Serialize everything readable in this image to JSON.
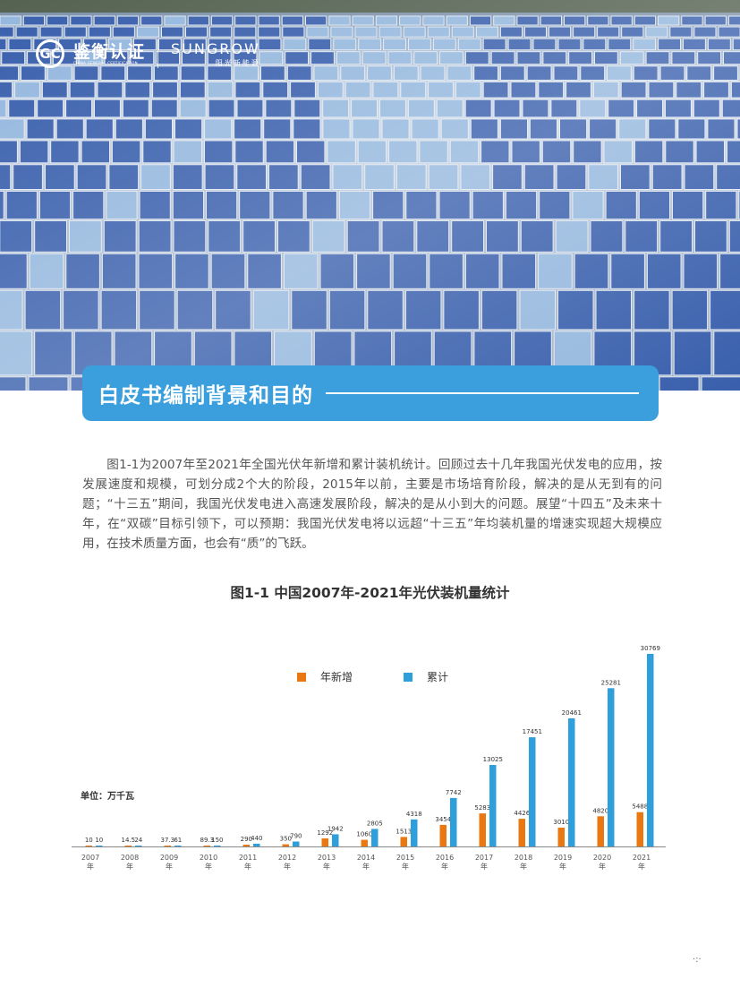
{
  "header": {
    "logo1_mark": "GC",
    "logo1_cn": "鉴衡认证",
    "logo1_en": "CHINA GENERAL CERTIFICATION",
    "logo2_en": "SUNGROW",
    "logo2_cn": "阳光新能源"
  },
  "section": {
    "title": "白皮书编制背景和目的"
  },
  "body": {
    "paragraph": "图1-1为2007年至2021年全国光伏年新增和累计装机统计。回顾过去十几年我国光伏发电的应用，按发展速度和规模，可划分成2个大的阶段，2015年以前，主要是市场培育阶段，解决的是从无到有的问题；“十三五”期间，我国光伏发电进入高速发展阶段，解决的是从小到大的问题。展望“十四五”及未来十年，在“双碳”目标引领下，可以预期：我国光伏发电将以远超“十三五”年均装机量的增速实现超大规模应用，在技术质量方面，也会有“质”的飞跃。"
  },
  "colors": {
    "accent": "#3a9fdc",
    "new": "#e8780f",
    "cumulative": "#2e9fdb"
  },
  "chart_data": {
    "type": "bar",
    "title": "图1-1 中国2007年-2021年光伏装机量统计",
    "unit_label": "单位：万千瓦",
    "categories": [
      "2007",
      "2008",
      "2009",
      "2010",
      "2011",
      "2012",
      "2013",
      "2014",
      "2015",
      "2016",
      "2017",
      "2018",
      "2019",
      "2020",
      "2021"
    ],
    "category_suffix": "年",
    "series": [
      {
        "name": "年新增",
        "color": "#e8780f",
        "values": [
          10,
          14.5,
          37.3,
          89.3,
          290,
          350,
          1292,
          1060,
          1513,
          3454,
          5283,
          4426,
          3010,
          4820,
          5488
        ]
      },
      {
        "name": "累计",
        "color": "#2e9fdb",
        "values": [
          10,
          24,
          61,
          150,
          440,
          790,
          1942,
          2805,
          4318,
          7742,
          13025,
          17451,
          20461,
          25281,
          30769
        ]
      }
    ],
    "ylim": [
      0,
      30769
    ],
    "legend": "top-center",
    "grid": false
  },
  "footer": {
    "page_mark": "·:·"
  }
}
